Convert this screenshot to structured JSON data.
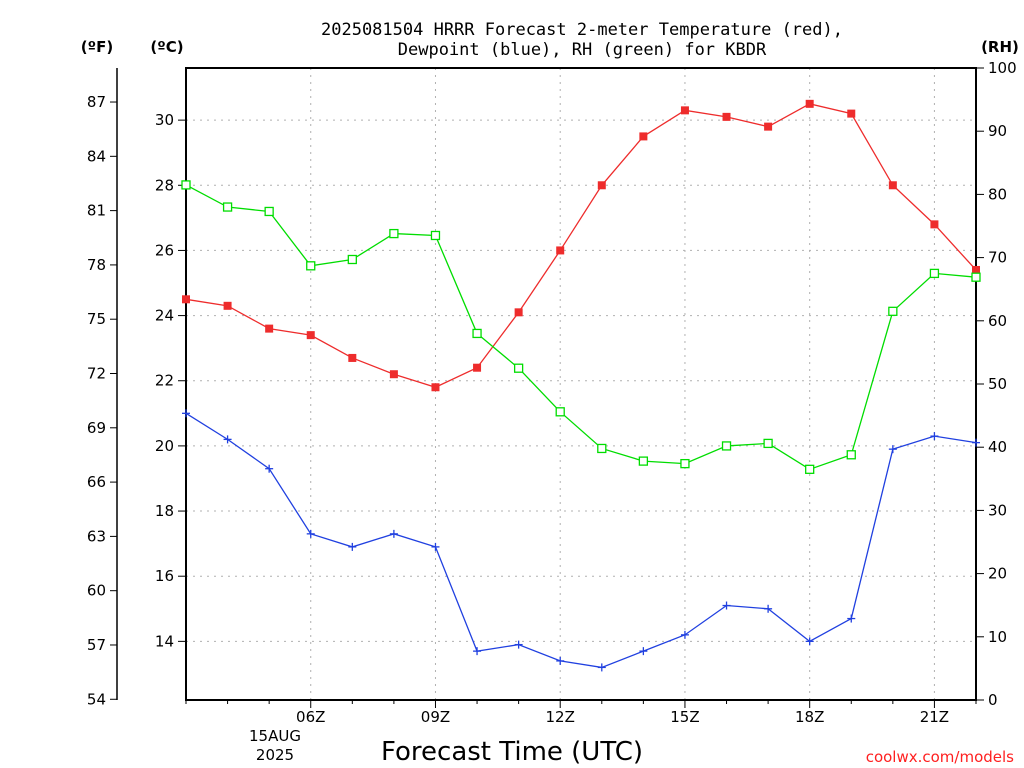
{
  "title_line1": "2025081504 HRRR Forecast 2-meter Temperature (red),",
  "title_line2": "Dewpoint (blue), RH (green) for KBDR",
  "units": {
    "fahrenheit": "(ºF)",
    "celsius": "(ºC)",
    "rh": "(RH)"
  },
  "x_axis_label": "Forecast Time (UTC)",
  "date_label": {
    "day": "15AUG",
    "year": "2025"
  },
  "credit": "coolwx.com/models",
  "colors": {
    "temperature": "#ee2c2c",
    "dewpoint": "#2040e0",
    "rh": "#00dd00"
  },
  "chart_data": {
    "type": "line",
    "x": [
      "03Z",
      "04Z",
      "05Z",
      "06Z",
      "07Z",
      "08Z",
      "09Z",
      "10Z",
      "11Z",
      "12Z",
      "13Z",
      "14Z",
      "15Z",
      "16Z",
      "17Z",
      "18Z",
      "19Z",
      "20Z",
      "21Z",
      "22Z"
    ],
    "x_ticks": [
      "06Z",
      "09Z",
      "12Z",
      "15Z",
      "18Z",
      "21Z"
    ],
    "c_ticks": [
      "14",
      "16",
      "18",
      "20",
      "22",
      "24",
      "26",
      "28",
      "30"
    ],
    "c_tick_values": [
      14,
      16,
      18,
      20,
      22,
      24,
      26,
      28,
      30
    ],
    "f_ticks": [
      "54",
      "57",
      "60",
      "63",
      "66",
      "69",
      "72",
      "75",
      "78",
      "81",
      "84",
      "87"
    ],
    "f_tick_values": [
      54,
      57,
      60,
      63,
      66,
      69,
      72,
      75,
      78,
      81,
      84,
      87
    ],
    "rh_ticks": [
      "0",
      "10",
      "20",
      "30",
      "40",
      "50",
      "60",
      "70",
      "80",
      "90",
      "100"
    ],
    "rh_tick_values": [
      0,
      10,
      20,
      30,
      40,
      50,
      60,
      70,
      80,
      90,
      100
    ],
    "ylim_c": [
      12.2,
      31.6
    ],
    "ylim_rh": [
      0,
      100
    ],
    "grid": true,
    "series": [
      {
        "axis": "c",
        "marker": "filled-square",
        "values": [
          24.5,
          24.3,
          23.6,
          23.4,
          22.7,
          22.2,
          21.8,
          22.4,
          24.1,
          26.0,
          28.0,
          29.5,
          30.3,
          30.1,
          29.8,
          30.5,
          30.2,
          28.0,
          26.8,
          25.4
        ]
      },
      {
        "axis": "c",
        "marker": "plus",
        "values": [
          21.0,
          20.2,
          19.3,
          17.3,
          16.9,
          17.3,
          16.9,
          13.7,
          13.9,
          13.4,
          13.2,
          13.7,
          14.2,
          15.1,
          15.0,
          14.0,
          14.7,
          19.9,
          20.3,
          20.1
        ]
      },
      {
        "axis": "rh",
        "marker": "open-square",
        "values": [
          81.5,
          78.0,
          77.3,
          68.7,
          69.7,
          73.8,
          73.5,
          58.0,
          52.5,
          45.6,
          39.8,
          37.8,
          37.4,
          40.2,
          40.6,
          36.5,
          38.8,
          61.5,
          67.5,
          66.9
        ]
      }
    ]
  }
}
